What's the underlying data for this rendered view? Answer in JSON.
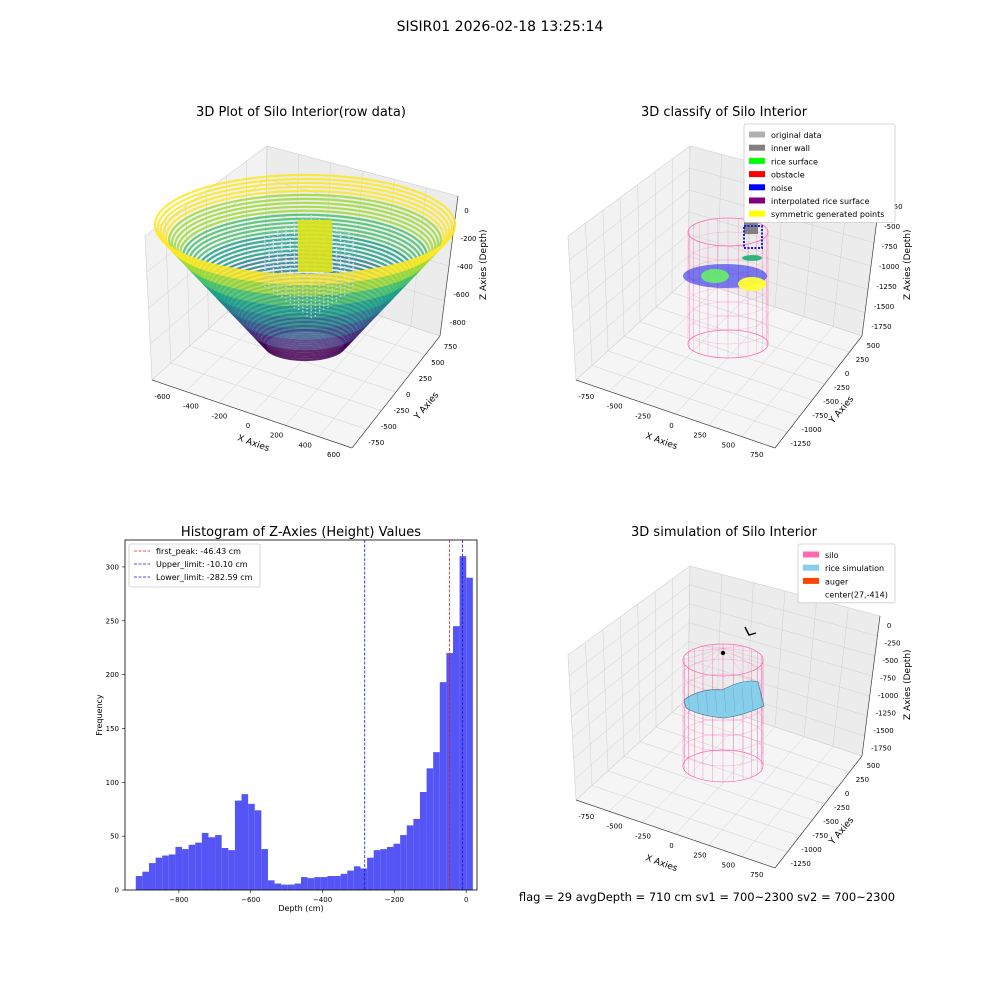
{
  "suptitle": "SISIR01 2026-02-18 13:25:14",
  "footer": "flag = 29  avgDepth = 710 cm  sv1 = 700~2300  sv2 = 700~2300",
  "colors": {
    "hist_bar": "#5050f5",
    "silo": "#ff69b4",
    "rice_sim": "#87ceeb",
    "auger": "#ff4500",
    "first_peak": "#e32020",
    "limits": "#1a1acc"
  },
  "chart_data": [
    {
      "type": "scatter3d",
      "title": "3D Plot of Silo Interior(row data)",
      "xlabel": "X Axies",
      "ylabel": "Y Axies",
      "zlabel": "Z Axies (Depth)",
      "xticks": [
        "-600",
        "-400",
        "-200",
        "0",
        "200",
        "400",
        "600"
      ],
      "yticks": [
        "-750",
        "-500",
        "-250",
        "0",
        "250",
        "500",
        "750"
      ],
      "zticks": [
        "-800",
        "-600",
        "-400",
        "-200",
        "0"
      ],
      "colormap": "viridis",
      "grid": true
    },
    {
      "type": "scatter3d",
      "title": "3D classify of Silo Interior",
      "xlabel": "X Axies",
      "ylabel": "Y Axies",
      "zlabel": "Z Axies (Depth)",
      "xticks": [
        "-750",
        "-500",
        "-250",
        "0",
        "250",
        "500",
        "750"
      ],
      "yticks": [
        "-1250",
        "-1000",
        "-750",
        "-500",
        "-250",
        "0",
        "250",
        "500"
      ],
      "zticks": [
        "-1750",
        "-1500",
        "-1250",
        "-1000",
        "-750",
        "-500",
        "-250"
      ],
      "legend_position": "upper-right",
      "legend": [
        {
          "label": "original data",
          "color": "#b0b0b0"
        },
        {
          "label": "inner wall",
          "color": "#808080"
        },
        {
          "label": "rice surface",
          "color": "#00ff00"
        },
        {
          "label": "obstacle",
          "color": "#ff0000"
        },
        {
          "label": "noise",
          "color": "#0000ff"
        },
        {
          "label": "interpolated rice surface",
          "color": "#800080"
        },
        {
          "label": "symmetric generated points",
          "color": "#ffff00"
        }
      ],
      "grid": true
    },
    {
      "type": "bar",
      "title": "Histogram of Z-Axies (Height) Values",
      "xlabel": "Depth (cm)",
      "ylabel": "Frequency",
      "xlim": [
        -950,
        30
      ],
      "ylim": [
        0,
        325
      ],
      "xticks": [
        -800,
        -600,
        -400,
        -200,
        0
      ],
      "xtick_labels": [
        "−800",
        "−600",
        "−400",
        "−200",
        "0"
      ],
      "yticks": [
        0,
        50,
        100,
        150,
        200,
        250,
        300
      ],
      "bin_start": -920,
      "bin_width": 18.4,
      "values": [
        13,
        17,
        25,
        30,
        32,
        33,
        40,
        38,
        42,
        44,
        53,
        49,
        51,
        39,
        37,
        83,
        89,
        80,
        74,
        38,
        9,
        6,
        5,
        5,
        6,
        12,
        11,
        12,
        12,
        13,
        13,
        15,
        18,
        22,
        20,
        30,
        37,
        38,
        40,
        43,
        51,
        60,
        66,
        91,
        113,
        128,
        193,
        220,
        245,
        310,
        290
      ],
      "lines": [
        {
          "label": "first_peak: -46.43 cm",
          "x": -46.43,
          "color": "#e32020"
        },
        {
          "label": "Upper_limit: -10.10 cm",
          "x": -10.1,
          "color": "#1a1acc"
        },
        {
          "label": "Lower_limit: -282.59 cm",
          "x": -282.59,
          "color": "#1a1acc"
        }
      ],
      "legend_position": "upper-left"
    },
    {
      "type": "surface3d",
      "title": "3D simulation of Silo Interior",
      "xlabel": "X Axies",
      "ylabel": "Y Axies",
      "zlabel": "Z Axies (Depth)",
      "xticks": [
        "-750",
        "-500",
        "-250",
        "0",
        "250",
        "500",
        "750"
      ],
      "yticks": [
        "-1250",
        "-1000",
        "-750",
        "-500",
        "-250",
        "0",
        "250",
        "500"
      ],
      "zticks": [
        "-1750",
        "-1500",
        "-1250",
        "-1000",
        "-750",
        "-500",
        "-250",
        "0"
      ],
      "legend_position": "upper-right",
      "legend": [
        {
          "label": "silo",
          "color": "#ff69b4"
        },
        {
          "label": "rice simulation",
          "color": "#87ceeb"
        },
        {
          "label": "auger",
          "color": "#ff4500"
        },
        {
          "label": "center(27,-414)",
          "color": ""
        }
      ],
      "grid": true
    }
  ]
}
